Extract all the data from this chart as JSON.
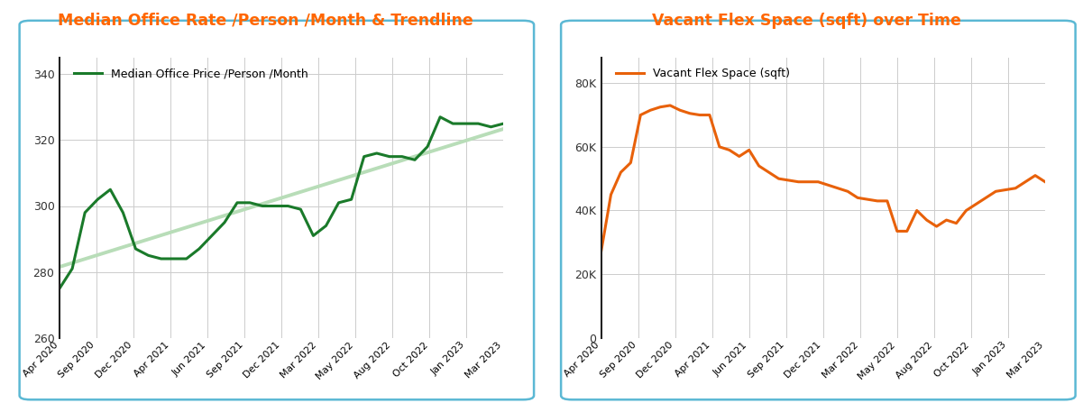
{
  "title_left": "Median Office Rate /Person /Month & Trendline",
  "title_right": "Vacant Flex Space (sqft) over Time",
  "title_color": "#FF6600",
  "title_fontsize": 12.5,
  "left_legend_label": "Median Office Price /Person /Month",
  "right_legend_label": "Vacant Flex Space (sqft)",
  "left_line_color": "#1a7a2a",
  "left_trend_color": "#b8ddb8",
  "right_line_color": "#E8610A",
  "x_labels": [
    "Apr 2020",
    "Sep 2020",
    "Dec 2020",
    "Apr 2021",
    "Jun 2021",
    "Sep 2021",
    "Dec 2021",
    "Mar 2022",
    "May 2022",
    "Aug 2022",
    "Oct 2022",
    "Jan 2023",
    "Mar 2023"
  ],
  "left_ylim": [
    260,
    345
  ],
  "left_yticks": [
    260,
    280,
    300,
    320,
    340
  ],
  "right_ylim": [
    0,
    88000
  ],
  "right_yticks": [
    0,
    20000,
    40000,
    60000,
    80000
  ],
  "right_yticklabels": [
    "0",
    "20K",
    "40K",
    "60K",
    "80K"
  ],
  "left_y": [
    275,
    281,
    298,
    302,
    305,
    298,
    287,
    285,
    284,
    284,
    284,
    287,
    291,
    295,
    301,
    301,
    300,
    300,
    300,
    299,
    291,
    294,
    301,
    302,
    315,
    316,
    315,
    315,
    314,
    318,
    327,
    325,
    325,
    325,
    324,
    325
  ],
  "right_y": [
    27000,
    45000,
    52000,
    55000,
    70000,
    71500,
    72500,
    73000,
    71500,
    70500,
    70000,
    70000,
    60000,
    59000,
    57000,
    59000,
    54000,
    52000,
    50000,
    49500,
    49000,
    49000,
    49000,
    48000,
    47000,
    46000,
    44000,
    43500,
    43000,
    43000,
    33500,
    33500,
    40000,
    37000,
    35000,
    37000,
    36000,
    40000,
    42000,
    44000,
    46000,
    46500,
    47000,
    49000,
    51000,
    49000
  ],
  "box_color": "#5bb8d4",
  "background_color": "#ffffff",
  "grid_color": "#cccccc",
  "spine_color": "#222222"
}
